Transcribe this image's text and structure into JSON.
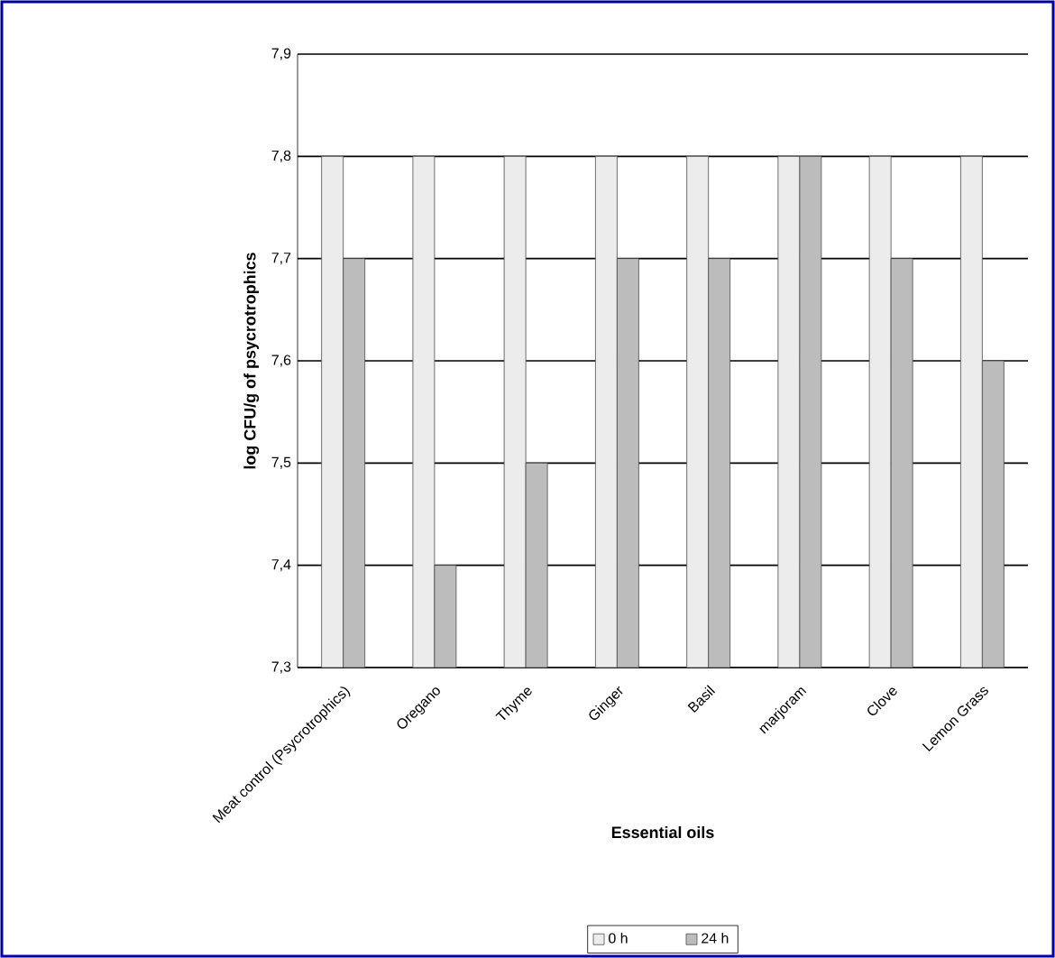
{
  "chart_data": {
    "type": "bar",
    "xlabel": "Essential oils",
    "ylabel": "log CFU/g of psycrotrophics",
    "categories": [
      "Meat control (Psycrotrophics)",
      "Oregano",
      "Thyme",
      "Ginger",
      "Basil",
      "marjoram",
      "Clove",
      "Lemon Grass"
    ],
    "series": [
      {
        "name": "0 h",
        "color": "#ececec",
        "values": [
          7.8,
          7.8,
          7.8,
          7.8,
          7.8,
          7.8,
          7.8,
          7.8
        ]
      },
      {
        "name": "24 h",
        "color": "#bcbcbc",
        "values": [
          7.7,
          7.4,
          7.5,
          7.7,
          7.7,
          7.8,
          7.7,
          7.6
        ]
      }
    ],
    "ylim": [
      7.3,
      7.9
    ],
    "yticks": [
      {
        "value": 7.3,
        "label": "7,3"
      },
      {
        "value": 7.4,
        "label": "7,4"
      },
      {
        "value": 7.5,
        "label": "7,5"
      },
      {
        "value": 7.6,
        "label": "7,6"
      },
      {
        "value": 7.7,
        "label": "7,7"
      },
      {
        "value": 7.8,
        "label": "7,8"
      },
      {
        "value": 7.9,
        "label": "7,9"
      }
    ],
    "grid": "y",
    "legend": "bottom"
  }
}
